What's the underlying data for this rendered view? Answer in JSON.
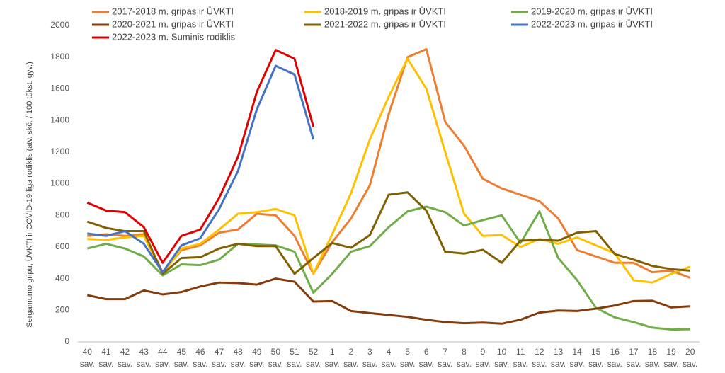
{
  "chart_data": {
    "type": "line",
    "y_label": "Sergamumo gripu, ŪVKTI ir COVID-19 liga rodiklis (atv. skč. / 100 tūkst. gyv.)",
    "categories": [
      "40 sav.",
      "41 sav.",
      "42 sav.",
      "43 sav.",
      "44 sav.",
      "45 sav.",
      "46 sav.",
      "47 sav.",
      "48 sav.",
      "49 sav.",
      "50 sav.",
      "51 sav.",
      "52 sav.",
      "1 sav.",
      "2 sav.",
      "3 sav.",
      "4 sav.",
      "5 sav.",
      "6 sav.",
      "7 sav.",
      "8 sav.",
      "9 sav.",
      "10 sav.",
      "11 sav.",
      "12 sav.",
      "13 sav.",
      "14 sav.",
      "15 sav.",
      "16 sav.",
      "17 sav.",
      "18 sav.",
      "19 sav.",
      "20 sav."
    ],
    "ylim": [
      0,
      2000
    ],
    "yticks": [
      0,
      200,
      400,
      600,
      800,
      1000,
      1200,
      1400,
      1600,
      1800,
      2000
    ],
    "grid": false,
    "series": [
      {
        "name": "2017-2018 m. gripas ir ŪVKTI",
        "color": "#ED7D31",
        "values": [
          670,
          680,
          670,
          680,
          440,
          580,
          610,
          690,
          710,
          810,
          800,
          670,
          430,
          630,
          780,
          990,
          1440,
          1800,
          1850,
          1390,
          1240,
          1030,
          970,
          930,
          890,
          780,
          580,
          540,
          500,
          500,
          440,
          450,
          405
        ]
      },
      {
        "name": "2018-2019 m. gripas ir ŪVKTI",
        "color": "#FFC000",
        "values": [
          650,
          645,
          660,
          670,
          430,
          590,
          620,
          710,
          810,
          820,
          840,
          800,
          430,
          680,
          940,
          1280,
          1550,
          1790,
          1600,
          1200,
          810,
          670,
          675,
          600,
          650,
          620,
          660,
          610,
          560,
          390,
          375,
          430,
          475
        ]
      },
      {
        "name": "2019-2020 m. gripas ir ŪVKTI",
        "color": "#70AD47",
        "values": [
          590,
          620,
          590,
          540,
          420,
          490,
          485,
          520,
          620,
          615,
          610,
          570,
          310,
          430,
          570,
          605,
          725,
          825,
          855,
          820,
          735,
          770,
          800,
          625,
          825,
          530,
          390,
          215,
          155,
          125,
          90,
          78,
          80
        ]
      },
      {
        "name": "2020-2021 m. gripas ir ŪVKTI",
        "color": "#843C0C",
        "values": [
          295,
          270,
          270,
          325,
          300,
          315,
          350,
          375,
          372,
          362,
          400,
          380,
          255,
          258,
          195,
          182,
          170,
          158,
          140,
          125,
          118,
          122,
          115,
          140,
          185,
          198,
          195,
          210,
          230,
          258,
          260,
          218,
          225
        ]
      },
      {
        "name": "2021-2022 m. gripas ir ŪVKTI",
        "color": "#806000",
        "values": [
          760,
          720,
          700,
          700,
          430,
          530,
          535,
          590,
          620,
          605,
          605,
          430,
          530,
          625,
          595,
          675,
          930,
          945,
          830,
          570,
          558,
          582,
          500,
          640,
          645,
          640,
          690,
          700,
          555,
          520,
          480,
          460,
          450
        ]
      },
      {
        "name": "2022-2023 m. gripas ir ŪVKTI",
        "color": "#4472C4",
        "values": [
          685,
          670,
          700,
          620,
          440,
          610,
          655,
          840,
          1080,
          1470,
          1745,
          1690,
          1280,
          null,
          null,
          null,
          null,
          null,
          null,
          null,
          null,
          null,
          null,
          null,
          null,
          null,
          null,
          null,
          null,
          null,
          null,
          null,
          null
        ]
      },
      {
        "name": "2022-2023 m. Suminis rodiklis",
        "color": "#E00000",
        "values": [
          880,
          830,
          820,
          725,
          500,
          670,
          710,
          910,
          1170,
          1580,
          1845,
          1790,
          1360,
          null,
          null,
          null,
          null,
          null,
          null,
          null,
          null,
          null,
          null,
          null,
          null,
          null,
          null,
          null,
          null,
          null,
          null,
          null,
          null
        ]
      }
    ]
  }
}
